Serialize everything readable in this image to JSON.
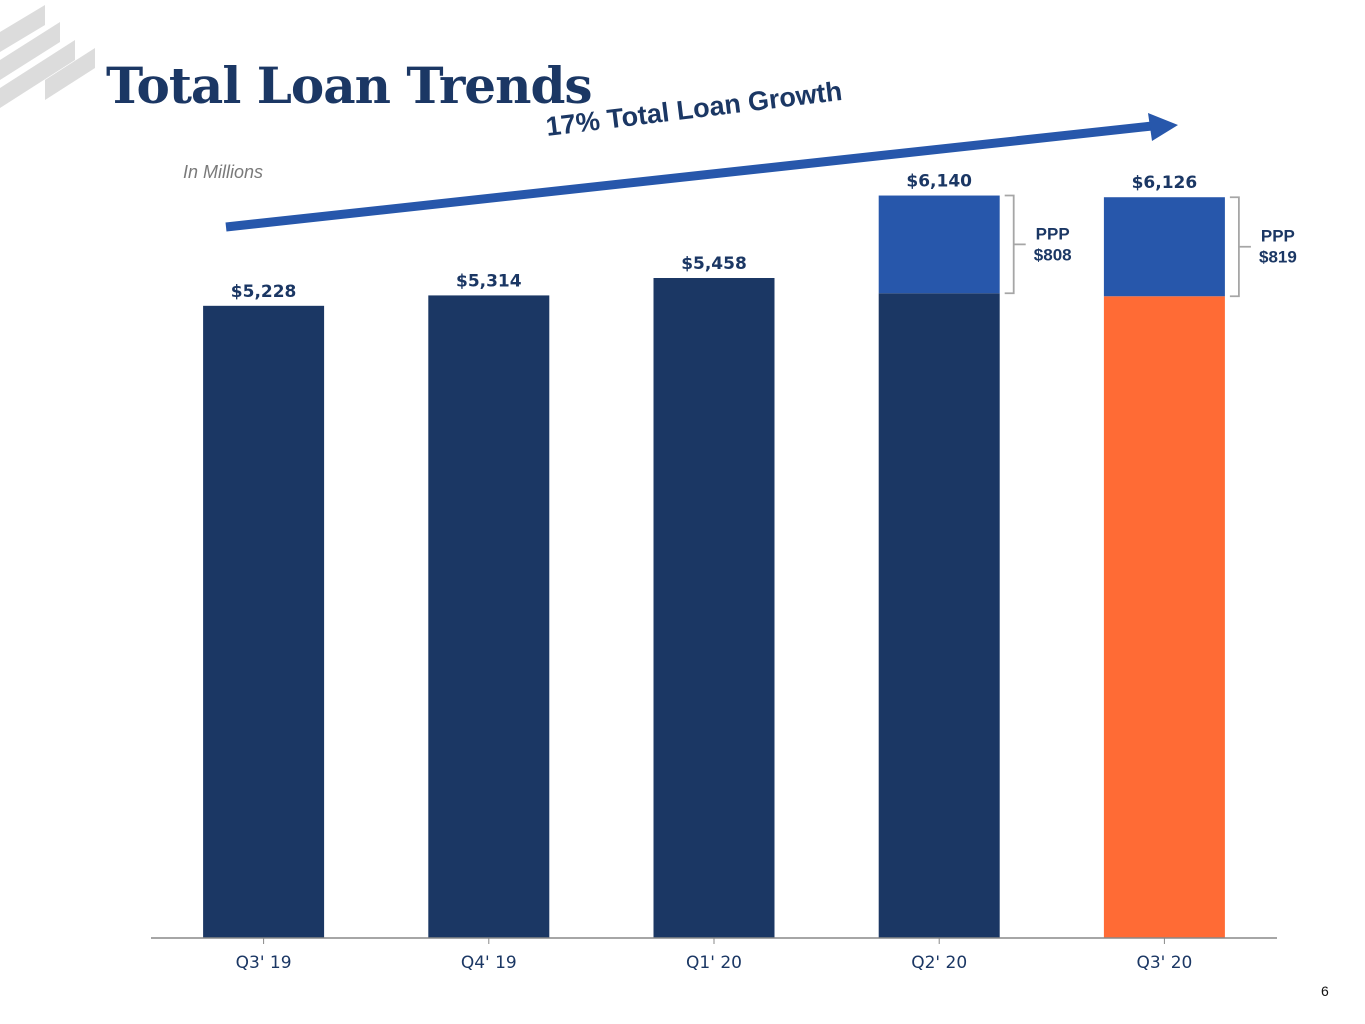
{
  "slide": {
    "title": "Total Loan Trends",
    "units_note": "In Millions",
    "growth_label": "17% Total Loan Growth",
    "page_number": "6"
  },
  "icons": {
    "logo": "diagonal-stripes-logo",
    "growth_arrow": "arrow-up-right-icon"
  },
  "colors": {
    "core_loans": "#1b3764",
    "ppp_loans": "#2757ab",
    "highlight": "#ff6b35",
    "title": "#1b3764",
    "axis": "#888888"
  },
  "chart_data": {
    "type": "bar",
    "stacked": true,
    "categories": [
      "Q3' 19",
      "Q4' 19",
      "Q1' 20",
      "Q2' 20",
      "Q3' 20"
    ],
    "series": [
      {
        "values": [
          5228,
          5314,
          5458,
          5332,
          5307
        ]
      },
      {
        "name": "PPP",
        "values": [
          0,
          0,
          0,
          808,
          819
        ]
      }
    ],
    "totals": [
      5228,
      5314,
      5458,
      6140,
      6126
    ],
    "total_labels": [
      "$5,228",
      "$5,314",
      "$5,458",
      "$6,140",
      "$6,126"
    ],
    "ppp_annotations": [
      {
        "category": "Q2' 20",
        "label": "PPP",
        "value": "$808"
      },
      {
        "category": "Q3' 20",
        "label": "PPP",
        "value": "$819"
      }
    ],
    "highlighted_category": "Q3' 20",
    "ylim": [
      0,
      6500
    ],
    "ylabel": "",
    "xlabel": "",
    "grid": false
  }
}
